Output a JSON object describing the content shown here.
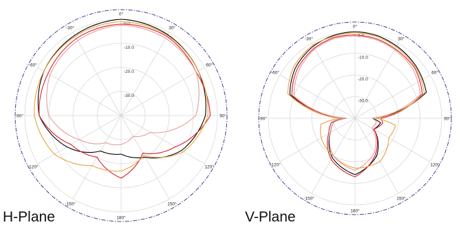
{
  "chart_data": [
    {
      "type": "polar",
      "title": "H-Plane",
      "angle_labels": [
        "0°",
        "30°",
        "60°",
        "90°",
        "120°",
        "150°",
        "180°",
        "-150°",
        "-120°",
        "-90°",
        "-60°",
        "-30°"
      ],
      "radial_labels": [
        "0.0",
        "-10.0",
        "-20.0",
        "-30.0"
      ],
      "rlim": [
        -40,
        0
      ],
      "grid": true,
      "colors": [
        "#000000",
        "#d61e2b",
        "#e8a13a",
        "#e89a9a"
      ],
      "series": [
        {
          "color": "#000000",
          "style": "solid",
          "theta": [
            -180,
            -150,
            -120,
            -90,
            -60,
            -30,
            0,
            30,
            60,
            90,
            120,
            150,
            180
          ],
          "r": [
            -24,
            -23,
            -14,
            -6,
            -3,
            -1.5,
            0,
            -1.2,
            -3,
            -5,
            -11,
            -20,
            -24
          ]
        },
        {
          "color": "#d61e2b",
          "style": "solid",
          "theta": [
            -180,
            -150,
            -120,
            -90,
            -60,
            -30,
            0,
            30,
            60,
            90,
            120,
            150,
            180
          ],
          "r": [
            -14,
            -20,
            -16,
            -6,
            -5,
            -3,
            -2,
            -2,
            -4,
            -3,
            -14,
            -22,
            -14
          ]
        },
        {
          "color": "#e8a13a",
          "style": "solid",
          "theta": [
            -180,
            -150,
            -120,
            -90,
            -60,
            -30,
            0,
            30,
            60,
            90,
            120,
            150,
            180
          ],
          "r": [
            -17,
            -16,
            -8,
            -4,
            -3,
            -2,
            -1,
            -1.5,
            -3,
            -4,
            -10,
            -21,
            -17
          ]
        },
        {
          "color": "#e89a9a",
          "style": "solid",
          "theta": [
            -180,
            -150,
            -120,
            -90,
            -60,
            -30,
            0,
            30,
            60,
            90,
            120,
            150,
            180
          ],
          "r": [
            -28,
            -27,
            -20,
            -10,
            -6,
            -4,
            -2.5,
            -3,
            -4,
            -9,
            -26,
            -30,
            -28
          ]
        },
        {
          "color": "#3a3f8f",
          "style": "dashdot",
          "theta": [
            -180,
            -120,
            -60,
            0,
            60,
            120,
            180
          ],
          "r": [
            0,
            0,
            0,
            0,
            0,
            0,
            0
          ]
        }
      ]
    },
    {
      "type": "polar",
      "title": "V-Plane",
      "angle_labels": [
        "0°",
        "30°",
        "60°",
        "90°",
        "120°",
        "150°",
        "180°",
        "-150°",
        "-120°",
        "-90°",
        "-60°",
        "-30°"
      ],
      "radial_labels": [
        "0.0",
        "-10.0",
        "-20.0",
        "-30.0"
      ],
      "rlim": [
        -40,
        0
      ],
      "grid": true,
      "colors": [
        "#000000",
        "#d61e2b",
        "#e8a13a",
        "#e89a9a"
      ],
      "series": [
        {
          "color": "#000000",
          "style": "solid",
          "theta": [
            -180,
            -150,
            -120,
            -100,
            -90,
            -70,
            -50,
            -30,
            -15,
            0,
            15,
            30,
            50,
            70,
            90,
            100,
            120,
            150,
            180
          ],
          "r": [
            -14,
            -19,
            -27,
            -30,
            -36,
            -8,
            -4,
            -1.5,
            -0.5,
            0,
            -0.5,
            -1.5,
            -3,
            -5,
            -32,
            -28,
            -30,
            -20,
            -14
          ]
        },
        {
          "color": "#d61e2b",
          "style": "solid",
          "theta": [
            -180,
            -150,
            -120,
            -100,
            -90,
            -70,
            -50,
            -30,
            -15,
            0,
            15,
            30,
            50,
            70,
            90,
            100,
            120,
            150,
            180
          ],
          "r": [
            -13,
            -18,
            -26,
            -29,
            -35,
            -9,
            -5,
            -2.5,
            -1.5,
            -1.5,
            -2,
            -3,
            -4,
            -7,
            -28,
            -27,
            -30,
            -21,
            -13
          ]
        },
        {
          "color": "#e8a13a",
          "style": "solid",
          "theta": [
            -180,
            -150,
            -120,
            -100,
            -90,
            -70,
            -50,
            -30,
            -15,
            0,
            15,
            30,
            50,
            70,
            90,
            100,
            120,
            150,
            180
          ],
          "r": [
            -17,
            -20,
            -22,
            -24,
            -33,
            -7,
            -3,
            -1,
            -1,
            -0.5,
            -1,
            -2,
            -3.5,
            -6,
            -30,
            -21,
            -22,
            -17,
            -17
          ]
        },
        {
          "color": "#e89a9a",
          "style": "solid",
          "theta": [
            -180,
            -150,
            -120,
            -100,
            -90,
            -70,
            -50,
            -30,
            -15,
            0,
            15,
            30,
            50,
            70,
            90,
            100,
            120,
            150,
            180
          ],
          "r": [
            -16,
            -20,
            -27,
            -30,
            -36,
            -10,
            -6,
            -3,
            -2,
            -2,
            -2.5,
            -3.5,
            -5,
            -8,
            -32,
            -30,
            -31,
            -22,
            -16
          ]
        },
        {
          "color": "#3a3f8f",
          "style": "dashdot",
          "theta": [
            -180,
            -120,
            -60,
            0,
            60,
            120,
            180
          ],
          "r": [
            0,
            0,
            0,
            0,
            0,
            0,
            0
          ]
        }
      ]
    }
  ]
}
